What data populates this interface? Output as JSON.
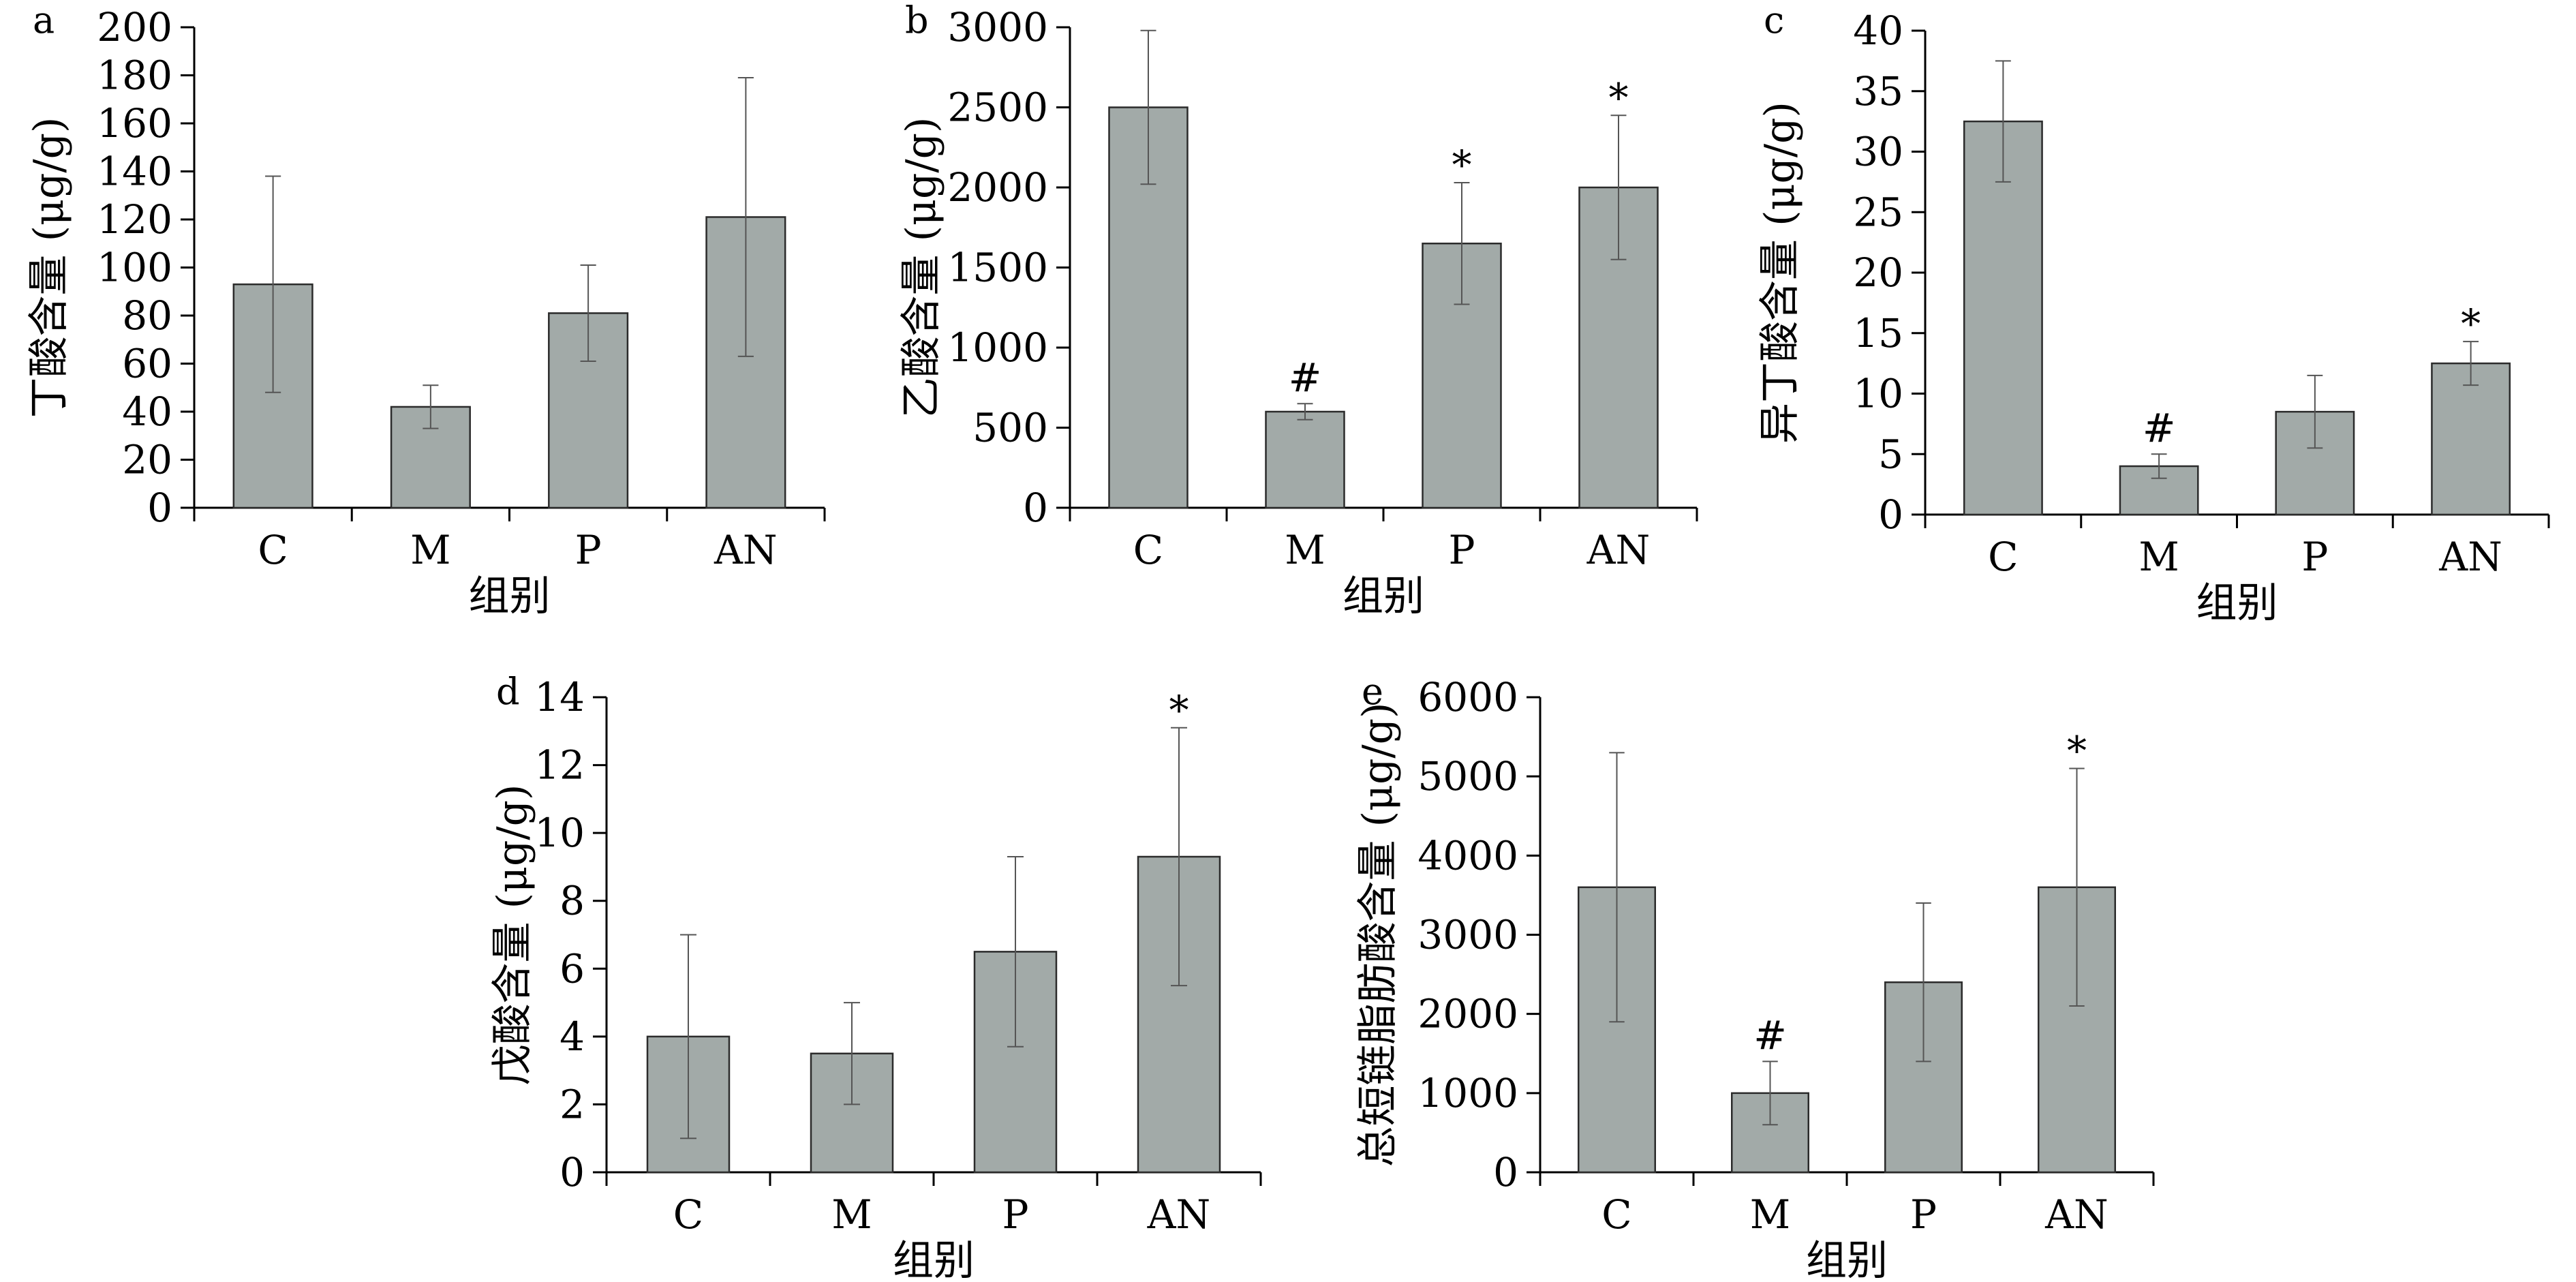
{
  "chart_data": [
    {
      "panel": "a",
      "type": "bar",
      "categories": [
        "C",
        "M",
        "P",
        "AN"
      ],
      "values": [
        93,
        42,
        81,
        121
      ],
      "errors": [
        45,
        9,
        20,
        58
      ],
      "marks": [
        "",
        "",
        "",
        ""
      ],
      "ylim": [
        0,
        200
      ],
      "yticks": [
        0,
        20,
        40,
        60,
        80,
        100,
        120,
        140,
        160,
        180,
        200
      ],
      "xlabel": "组别",
      "ylabel": "丁酸含量 (μg/g)",
      "grid": false
    },
    {
      "panel": "b",
      "type": "bar",
      "categories": [
        "C",
        "M",
        "P",
        "AN"
      ],
      "values": [
        2500,
        600,
        1650,
        2000
      ],
      "errors": [
        480,
        50,
        380,
        450
      ],
      "marks": [
        "",
        "#",
        "*",
        "*"
      ],
      "ylim": [
        0,
        3000
      ],
      "yticks": [
        0,
        500,
        1000,
        1500,
        2000,
        2500,
        3000
      ],
      "xlabel": "组别",
      "ylabel": "乙酸含量 (μg/g)",
      "grid": false
    },
    {
      "panel": "c",
      "type": "bar",
      "categories": [
        "C",
        "M",
        "P",
        "AN"
      ],
      "values": [
        32.5,
        4,
        8.5,
        12.5
      ],
      "errors": [
        5,
        1,
        3,
        1.8
      ],
      "marks": [
        "",
        "#",
        "",
        "*"
      ],
      "ylim": [
        0,
        40
      ],
      "yticks": [
        0,
        5,
        10,
        15,
        20,
        25,
        30,
        35,
        40
      ],
      "xlabel": "组别",
      "ylabel": "异丁酸含量 (μg/g)",
      "grid": false
    },
    {
      "panel": "d",
      "type": "bar",
      "categories": [
        "C",
        "M",
        "P",
        "AN"
      ],
      "values": [
        4,
        3.5,
        6.5,
        9.3
      ],
      "errors": [
        3,
        1.5,
        2.8,
        3.8
      ],
      "marks": [
        "",
        "",
        "",
        "*"
      ],
      "ylim": [
        0,
        14
      ],
      "yticks": [
        0,
        2,
        4,
        6,
        8,
        10,
        12,
        14
      ],
      "xlabel": "组别",
      "ylabel": "戊酸含量 (μg/g)",
      "grid": false
    },
    {
      "panel": "e",
      "type": "bar",
      "categories": [
        "C",
        "M",
        "P",
        "AN"
      ],
      "values": [
        3600,
        1000,
        2400,
        3600
      ],
      "errors": [
        1700,
        400,
        1000,
        1500
      ],
      "marks": [
        "",
        "#",
        "",
        "*"
      ],
      "ylim": [
        0,
        6000
      ],
      "yticks": [
        0,
        1000,
        2000,
        3000,
        4000,
        5000,
        6000
      ],
      "xlabel": "组别",
      "ylabel": "总短链脂肪酸含量 (μg/g)",
      "grid": false
    }
  ],
  "colors": {
    "bar_fill": "#a2aaa8",
    "bar_stroke": "#2b2b2b",
    "axis": "#000000"
  }
}
